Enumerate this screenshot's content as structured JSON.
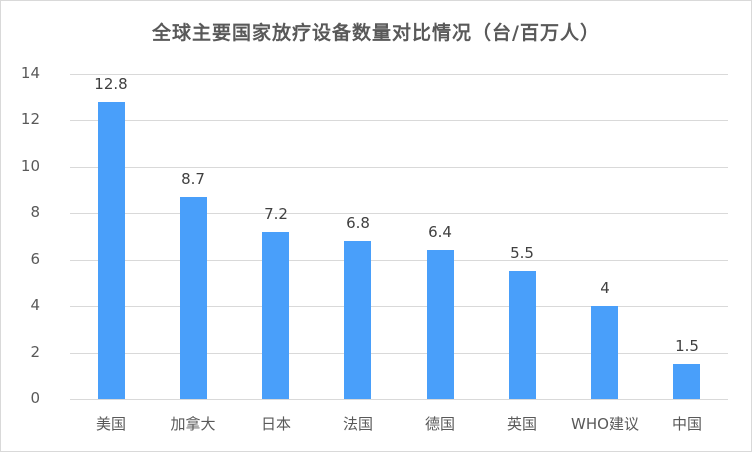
{
  "chart_data": {
    "type": "bar",
    "title": "全球主要国家放疗设备数量对比情况（台/百万人）",
    "categories": [
      "美国",
      "加拿大",
      "日本",
      "法国",
      "德国",
      "英国",
      "WHO建议",
      "中国"
    ],
    "values": [
      12.8,
      8.7,
      7.2,
      6.8,
      6.4,
      5.5,
      4,
      1.5
    ],
    "value_labels": [
      "12.8",
      "8.7",
      "7.2",
      "6.8",
      "6.4",
      "5.5",
      "4",
      "1.5"
    ],
    "xlabel": "",
    "ylabel": "",
    "ylim": [
      0,
      14
    ],
    "yticks": [
      "0",
      "2",
      "4",
      "6",
      "8",
      "10",
      "12",
      "14"
    ],
    "grid": true,
    "legend": "none",
    "bar_color": "#499ffa"
  }
}
